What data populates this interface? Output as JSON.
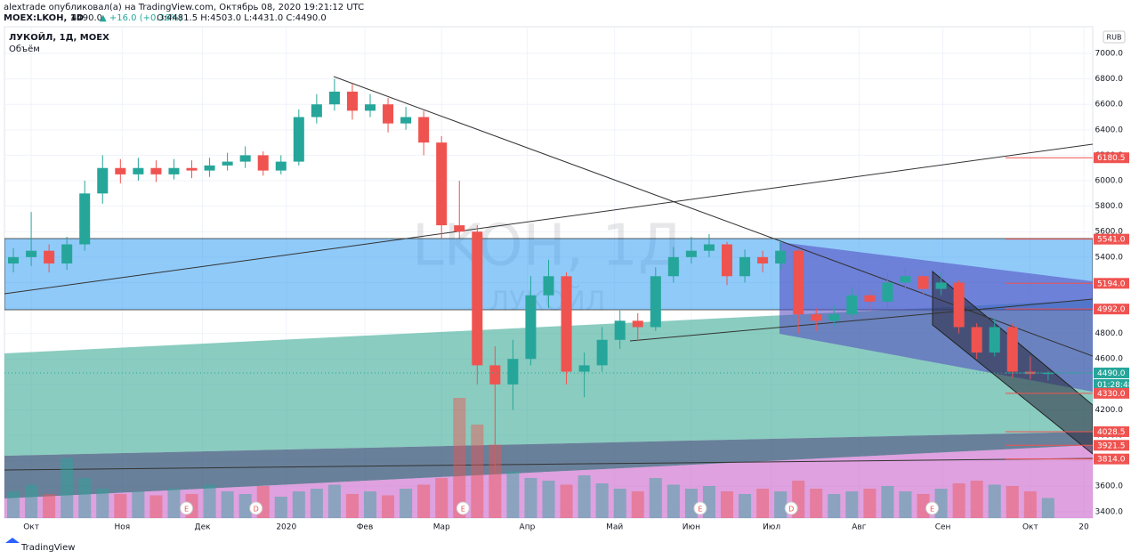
{
  "header": {
    "publisher": "alextrade опубликовал(а) на TradingView.com, Октябрь 08, 2020 19:21:12 UTC",
    "symbol": "MOEX:LKOH, 1D",
    "last": "4490.0",
    "change": "▲ +16.0 (+0.36%)",
    "ohlc": "O:4481.5 H:4503.0 L:4431.0 C:4490.0"
  },
  "chart_data": {
    "type": "candlestick",
    "title": "ЛУКОЙЛ, 1Д, MOEX",
    "subtitle": "Объём",
    "watermark": "LKOH, 1Д",
    "watermark_sub": "ЛУКОЙЛ",
    "currency": "RUB",
    "up_color": "#26a69a",
    "down_color": "#ef5350",
    "open": [
      5350,
      5400,
      5450,
      5350,
      5500,
      5900,
      6100,
      6050,
      6100,
      6050,
      6100,
      6080,
      6120,
      6150,
      6200,
      6080,
      6150,
      6500,
      6600,
      6700,
      6550,
      6600,
      6450,
      6500,
      6300,
      5650,
      5600,
      4550,
      4400,
      4600,
      5100,
      5250,
      4500,
      4550,
      4750,
      4900,
      4850,
      5250,
      5400,
      5450,
      5500,
      5250,
      5400,
      5350,
      5450,
      4950,
      4900,
      4950,
      5100,
      5050,
      5200,
      5250,
      5150,
      5200,
      4850,
      4650,
      4850,
      4500,
      4481.5
    ],
    "high": [
      5470,
      5754,
      5500,
      5560,
      6000,
      6200,
      6170,
      6180,
      6160,
      6170,
      6160,
      6180,
      6220,
      6270,
      6230,
      6200,
      6560,
      6680,
      6800,
      6760,
      6680,
      6650,
      6580,
      6550,
      6350,
      6000,
      5650,
      4700,
      4750,
      5250,
      5380,
      5280,
      4650,
      4850,
      4980,
      4960,
      5320,
      5480,
      5560,
      5580,
      5520,
      5460,
      5450,
      5520,
      5460,
      5000,
      5020,
      5160,
      5140,
      5280,
      5320,
      5300,
      5280,
      5220,
      4880,
      4920,
      4880,
      4620,
      4503
    ],
    "low": [
      5280,
      5330,
      5280,
      5300,
      5450,
      5820,
      5980,
      6000,
      5990,
      6010,
      6020,
      6030,
      6080,
      6100,
      6040,
      6050,
      6120,
      6450,
      6550,
      6480,
      6500,
      6380,
      6400,
      6200,
      5550,
      5550,
      4400,
      3700,
      4200,
      4550,
      5000,
      4400,
      4300,
      4500,
      4680,
      4740,
      4820,
      5200,
      5350,
      5400,
      5180,
      5200,
      5280,
      5300,
      4800,
      4820,
      4860,
      4920,
      4980,
      5000,
      5150,
      5100,
      5100,
      4800,
      4600,
      4620,
      4450,
      4440,
      4431
    ],
    "close": [
      5400,
      5450,
      5350,
      5500,
      5900,
      6100,
      6050,
      6100,
      6050,
      6100,
      6080,
      6120,
      6150,
      6200,
      6080,
      6150,
      6500,
      6600,
      6700,
      6550,
      6600,
      6450,
      6500,
      6300,
      5650,
      5600,
      4550,
      4400,
      4600,
      5100,
      5250,
      4500,
      4550,
      4750,
      4900,
      4850,
      5250,
      5400,
      5450,
      5500,
      5250,
      5400,
      5350,
      5450,
      4950,
      4900,
      4950,
      5100,
      5050,
      5200,
      5250,
      5150,
      5200,
      4850,
      4650,
      4850,
      4500,
      4481.5,
      4490
    ],
    "volume": {
      "values": [
        20,
        25,
        18,
        45,
        30,
        22,
        18,
        20,
        17,
        22,
        18,
        25,
        20,
        18,
        24,
        16,
        20,
        22,
        25,
        18,
        20,
        17,
        22,
        25,
        30,
        90,
        70,
        55,
        35,
        30,
        28,
        25,
        32,
        26,
        22,
        20,
        30,
        25,
        22,
        24,
        20,
        18,
        22,
        20,
        28,
        22,
        18,
        20,
        22,
        24,
        20,
        18,
        22,
        26,
        28,
        25,
        24,
        20,
        15
      ],
      "ylim": [
        0,
        100
      ]
    },
    "xlim": [
      0,
      61
    ],
    "xticks": [
      {
        "value": 1.5,
        "label": "Окт"
      },
      {
        "value": 6.6,
        "label": "Ноя"
      },
      {
        "value": 11.1,
        "label": "Дек"
      },
      {
        "value": 15.8,
        "label": "2020"
      },
      {
        "value": 20.2,
        "label": "Фев"
      },
      {
        "value": 24.5,
        "label": "Мар"
      },
      {
        "value": 29.3,
        "label": "Апр"
      },
      {
        "value": 34.2,
        "label": "Май"
      },
      {
        "value": 38.5,
        "label": "Июн"
      },
      {
        "value": 43.0,
        "label": "Июл"
      },
      {
        "value": 47.9,
        "label": "Авг"
      },
      {
        "value": 52.6,
        "label": "Сен"
      },
      {
        "value": 57.5,
        "label": "Окт"
      },
      {
        "value": 60.5,
        "label": "20"
      }
    ],
    "ylim": [
      3350,
      7210
    ],
    "yticks": [
      {
        "value": 3400,
        "label": "3400.0"
      },
      {
        "value": 3600,
        "label": "3600.0"
      },
      {
        "value": 3800,
        "label": "3800.0"
      },
      {
        "value": 4000,
        "label": "4000.0"
      },
      {
        "value": 4200,
        "label": "4200.0"
      },
      {
        "value": 4400,
        "label": "4400.0"
      },
      {
        "value": 4600,
        "label": "4600.0"
      },
      {
        "value": 4800,
        "label": "4800.0"
      },
      {
        "value": 5000,
        "label": "5000.0"
      },
      {
        "value": 5200,
        "label": "5200.0"
      },
      {
        "value": 5400,
        "label": "5400.0"
      },
      {
        "value": 5600,
        "label": "5600.0"
      },
      {
        "value": 5800,
        "label": "5800.0"
      },
      {
        "value": 6000,
        "label": "6000.0"
      },
      {
        "value": 6200,
        "label": "6200.0"
      },
      {
        "value": 6400,
        "label": "6400.0"
      },
      {
        "value": 6600,
        "label": "6600.0"
      },
      {
        "value": 6800,
        "label": "6800.0"
      },
      {
        "value": 7000,
        "label": "7000.0"
      }
    ],
    "price_labels": [
      {
        "value": 6180.5,
        "label": "6180.5",
        "color": "#ef5350"
      },
      {
        "value": 5541,
        "label": "5541.0",
        "color": "#ef5350"
      },
      {
        "value": 5194,
        "label": "5194.0",
        "color": "#ef5350"
      },
      {
        "value": 4992,
        "label": "4992.0",
        "color": "#ef5350"
      },
      {
        "value": 4490,
        "label": "4490.0",
        "color": "#26a69a"
      },
      {
        "value": 4330,
        "label": "4330.0",
        "color": "#ef5350"
      },
      {
        "value": 4028.5,
        "label": "4028.5",
        "color": "#ef5350"
      },
      {
        "value": 3921.5,
        "label": "3921.5",
        "color": "#ef5350"
      },
      {
        "value": 3814,
        "label": "3814.0",
        "color": "#ef5350"
      }
    ],
    "countdown": "01:28:48",
    "events": [
      {
        "x": 10.2,
        "label": "E"
      },
      {
        "x": 14.1,
        "label": "D"
      },
      {
        "x": 25.7,
        "label": "E"
      },
      {
        "x": 39.0,
        "label": "E"
      },
      {
        "x": 44.1,
        "label": "D"
      },
      {
        "x": 52.0,
        "label": "E"
      }
    ]
  },
  "footer": {
    "brand": "TradingView"
  }
}
